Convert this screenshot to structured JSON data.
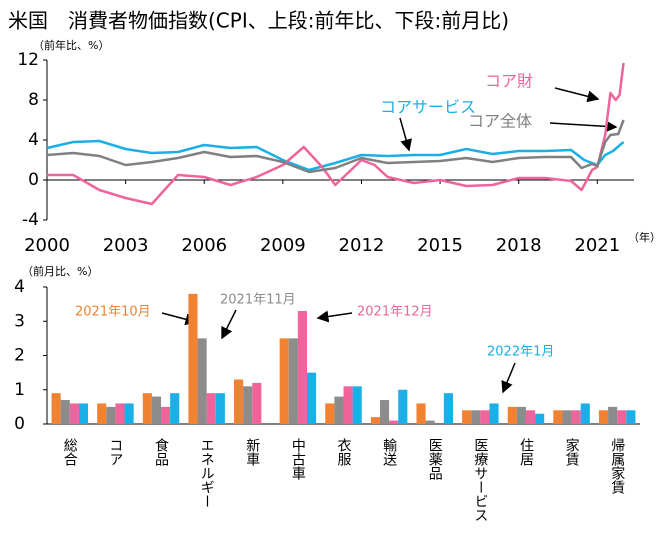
{
  "chart_data": [
    {
      "type": "line",
      "title": "米国　消費者物価指数(CPI、上段:前年比、下段:前月比)",
      "y_label": "（前年比、%）",
      "x_label": "（年）",
      "xlim": [
        2000,
        2022.4
      ],
      "xticks": [
        2000,
        2003,
        2006,
        2009,
        2012,
        2015,
        2018,
        2021
      ],
      "ylim": [
        -4,
        12
      ],
      "yticks": [
        -4,
        0,
        4,
        8,
        12
      ],
      "series": [
        {
          "name": "コアサービス",
          "color": "#1aafe6",
          "x": [
            2000,
            2001,
            2002,
            2003,
            2004,
            2005,
            2006,
            2007,
            2008,
            2009,
            2010,
            2011,
            2012,
            2013,
            2014,
            2015,
            2016,
            2017,
            2018,
            2019,
            2020,
            2020.5,
            2021,
            2021.3,
            2021.6,
            2022
          ],
          "values": [
            3.2,
            3.8,
            3.9,
            3.1,
            2.7,
            2.8,
            3.5,
            3.2,
            3.3,
            2.0,
            1.0,
            1.7,
            2.5,
            2.4,
            2.5,
            2.5,
            3.1,
            2.6,
            2.9,
            2.9,
            3.0,
            2.0,
            1.5,
            2.5,
            2.9,
            3.8
          ]
        },
        {
          "name": "コア財",
          "color": "#f0649b",
          "x": [
            2000,
            2001,
            2002,
            2003,
            2004,
            2005,
            2006,
            2007,
            2008,
            2009,
            2009.8,
            2010.5,
            2011,
            2012,
            2012.5,
            2013,
            2014,
            2015,
            2016,
            2017,
            2018,
            2019,
            2020,
            2020.4,
            2020.8,
            2021,
            2021.3,
            2021.5,
            2021.7,
            2021.85,
            2022
          ],
          "values": [
            0.5,
            0.5,
            -1.0,
            -1.8,
            -2.4,
            0.5,
            0.3,
            -0.5,
            0.3,
            1.5,
            3.3,
            1.3,
            -0.5,
            2.0,
            1.5,
            0.3,
            -0.3,
            0.0,
            -0.6,
            -0.5,
            0.2,
            0.2,
            -0.1,
            -1.0,
            1.0,
            1.3,
            4.5,
            8.7,
            8.0,
            8.5,
            11.7
          ]
        },
        {
          "name": "コア全体",
          "color": "#808080",
          "x": [
            2000,
            2001,
            2002,
            2003,
            2004,
            2005,
            2006,
            2007,
            2008,
            2009,
            2010,
            2011,
            2012,
            2013,
            2014,
            2015,
            2016,
            2017,
            2018,
            2019,
            2020,
            2020.4,
            2020.8,
            2021,
            2021.3,
            2021.5,
            2021.8,
            2022
          ],
          "values": [
            2.5,
            2.7,
            2.4,
            1.5,
            1.8,
            2.2,
            2.8,
            2.3,
            2.4,
            1.8,
            0.8,
            1.2,
            2.2,
            1.7,
            1.8,
            1.9,
            2.2,
            1.8,
            2.2,
            2.3,
            2.3,
            1.2,
            1.6,
            1.4,
            3.8,
            4.5,
            4.6,
            6.0
          ]
        }
      ]
    },
    {
      "type": "bar",
      "y_label": "（前月比、%）",
      "ylim": [
        0,
        4
      ],
      "yticks": [
        0,
        1,
        2,
        3,
        4
      ],
      "categories": [
        "総合",
        "コア",
        "食品",
        "エネルギー",
        "新車",
        "中古車",
        "衣服",
        "輸送",
        "医薬品",
        "医療サービス",
        "住居",
        "家賃",
        "帰属家賃"
      ],
      "series": [
        {
          "name": "2021年10月",
          "color": "#f08232",
          "values": [
            0.9,
            0.6,
            0.9,
            3.8,
            1.3,
            2.5,
            0.6,
            0.2,
            0.6,
            0.4,
            0.5,
            0.4,
            0.4
          ]
        },
        {
          "name": "2021年11月",
          "color": "#8c8c8c",
          "values": [
            0.7,
            0.5,
            0.8,
            2.5,
            1.1,
            2.5,
            0.8,
            0.7,
            0.1,
            0.4,
            0.5,
            0.4,
            0.5
          ]
        },
        {
          "name": "2021年12月",
          "color": "#f0649b",
          "values": [
            0.6,
            0.6,
            0.5,
            0.9,
            1.2,
            3.3,
            1.1,
            0.1,
            0.0,
            0.4,
            0.4,
            0.4,
            0.4
          ]
        },
        {
          "name": "2022年1月",
          "color": "#1aafe6",
          "values": [
            0.6,
            0.6,
            0.9,
            0.9,
            0.0,
            1.5,
            1.1,
            1.0,
            0.9,
            0.6,
            0.3,
            0.6,
            0.4
          ]
        }
      ]
    }
  ]
}
